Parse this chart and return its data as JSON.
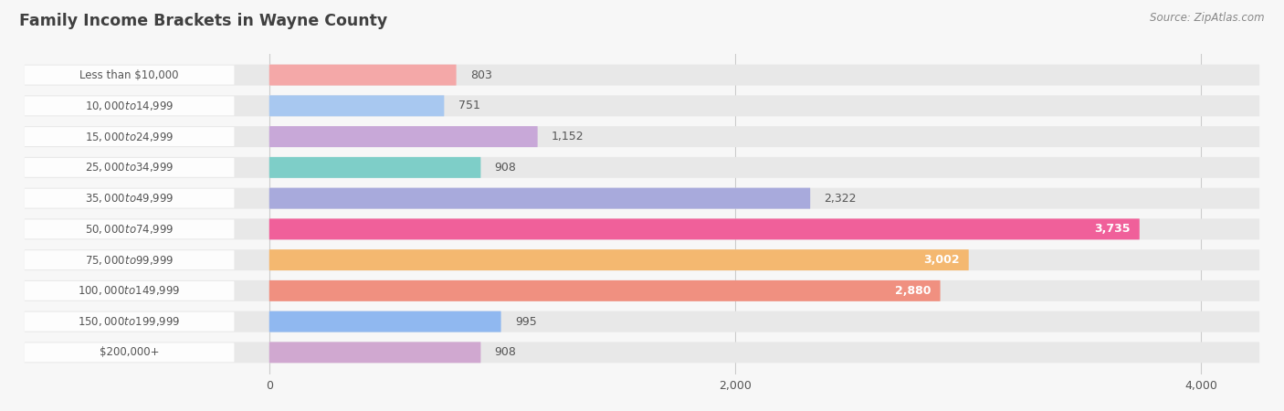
{
  "title": "Family Income Brackets in Wayne County",
  "source": "Source: ZipAtlas.com",
  "categories": [
    "Less than $10,000",
    "$10,000 to $14,999",
    "$15,000 to $24,999",
    "$25,000 to $34,999",
    "$35,000 to $49,999",
    "$50,000 to $74,999",
    "$75,000 to $99,999",
    "$100,000 to $149,999",
    "$150,000 to $199,999",
    "$200,000+"
  ],
  "values": [
    803,
    751,
    1152,
    908,
    2322,
    3735,
    3002,
    2880,
    995,
    908
  ],
  "bar_colors": [
    "#F4A8A8",
    "#A8C8F0",
    "#C8A8D8",
    "#7ECEC8",
    "#A8AADC",
    "#F0609A",
    "#F4B870",
    "#F09080",
    "#90B8F0",
    "#D0A8D0"
  ],
  "value_labels": [
    "803",
    "751",
    "1,152",
    "908",
    "2,322",
    "3,735",
    "3,002",
    "2,880",
    "995",
    "908"
  ],
  "value_label_white": [
    false,
    false,
    false,
    false,
    false,
    true,
    true,
    true,
    false,
    false
  ],
  "xlim_data": [
    -500,
    4200
  ],
  "xlim_display": [
    0,
    4000
  ],
  "xticks": [
    0,
    2000,
    4000
  ],
  "background_color": "#f7f7f7",
  "bar_bg_color": "#e8e8e8",
  "label_pill_color": "#ffffff",
  "title_color": "#404040",
  "label_color": "#555555",
  "source_color": "#888888"
}
